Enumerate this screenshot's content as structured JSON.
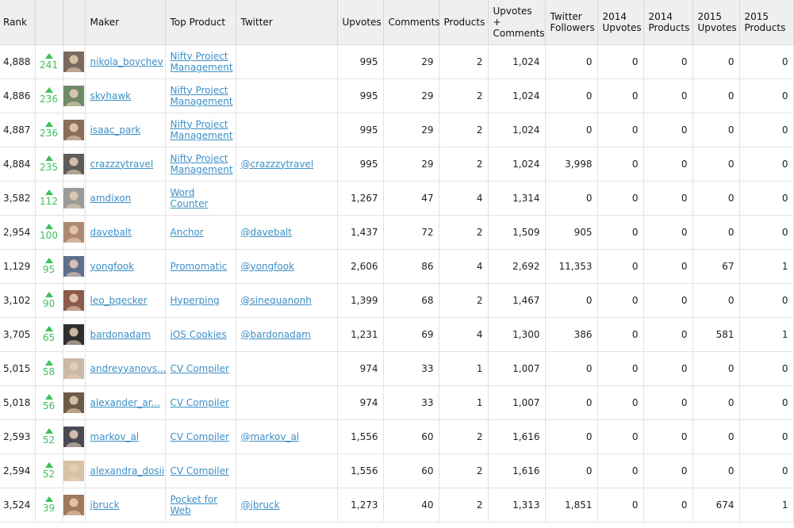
{
  "columns": {
    "rank": "Rank",
    "maker": "Maker",
    "top_product": "Top Product",
    "twitter": "Twitter",
    "upvotes": "Upvotes",
    "comments": "Comments",
    "products": "Products",
    "upvotes_comments": "Upvotes + Comments",
    "twitter_followers": "Twitter Followers",
    "upvotes_2014": "2014 Upvotes",
    "products_2014": "2014 Products",
    "upvotes_2015": "2015 Upvotes",
    "products_2015": "2015 Products"
  },
  "rows": [
    {
      "rank": "4,888",
      "delta": "241",
      "maker": "nikola_boychev",
      "product": "Nifty Project Management",
      "twitter": "",
      "upvotes": "995",
      "comments": "29",
      "products": "2",
      "uc": "1,024",
      "followers": "0",
      "u14": "0",
      "p14": "0",
      "u15": "0",
      "p15": "0"
    },
    {
      "rank": "4,886",
      "delta": "236",
      "maker": "skyhawk",
      "product": "Nifty Project Management",
      "twitter": "",
      "upvotes": "995",
      "comments": "29",
      "products": "2",
      "uc": "1,024",
      "followers": "0",
      "u14": "0",
      "p14": "0",
      "u15": "0",
      "p15": "0"
    },
    {
      "rank": "4,887",
      "delta": "236",
      "maker": "isaac_park",
      "product": "Nifty Project Management",
      "twitter": "",
      "upvotes": "995",
      "comments": "29",
      "products": "2",
      "uc": "1,024",
      "followers": "0",
      "u14": "0",
      "p14": "0",
      "u15": "0",
      "p15": "0"
    },
    {
      "rank": "4,884",
      "delta": "235",
      "maker": "crazzzytravel",
      "product": "Nifty Project Management",
      "twitter": "@crazzzytravel",
      "upvotes": "995",
      "comments": "29",
      "products": "2",
      "uc": "1,024",
      "followers": "3,998",
      "u14": "0",
      "p14": "0",
      "u15": "0",
      "p15": "0"
    },
    {
      "rank": "3,582",
      "delta": "112",
      "maker": "amdixon",
      "product": "Word Counter",
      "twitter": "",
      "upvotes": "1,267",
      "comments": "47",
      "products": "4",
      "uc": "1,314",
      "followers": "0",
      "u14": "0",
      "p14": "0",
      "u15": "0",
      "p15": "0"
    },
    {
      "rank": "2,954",
      "delta": "100",
      "maker": "davebalt",
      "product": "Anchor",
      "twitter": "@davebalt",
      "upvotes": "1,437",
      "comments": "72",
      "products": "2",
      "uc": "1,509",
      "followers": "905",
      "u14": "0",
      "p14": "0",
      "u15": "0",
      "p15": "0"
    },
    {
      "rank": "1,129",
      "delta": "95",
      "maker": "yongfook",
      "product": "Promomatic",
      "twitter": "@yongfook",
      "upvotes": "2,606",
      "comments": "86",
      "products": "4",
      "uc": "2,692",
      "followers": "11,353",
      "u14": "0",
      "p14": "0",
      "u15": "67",
      "p15": "1"
    },
    {
      "rank": "3,102",
      "delta": "90",
      "maker": "leo_bqecker",
      "product": "Hyperping",
      "twitter": "@sinequanonh",
      "upvotes": "1,399",
      "comments": "68",
      "products": "2",
      "uc": "1,467",
      "followers": "0",
      "u14": "0",
      "p14": "0",
      "u15": "0",
      "p15": "0"
    },
    {
      "rank": "3,705",
      "delta": "65",
      "maker": "bardonadam",
      "product": "iOS Cookies",
      "twitter": "@bardonadam",
      "upvotes": "1,231",
      "comments": "69",
      "products": "4",
      "uc": "1,300",
      "followers": "386",
      "u14": "0",
      "p14": "0",
      "u15": "581",
      "p15": "1"
    },
    {
      "rank": "5,015",
      "delta": "58",
      "maker": "andreyyanovs...",
      "product": "CV Compiler",
      "twitter": "",
      "upvotes": "974",
      "comments": "33",
      "products": "1",
      "uc": "1,007",
      "followers": "0",
      "u14": "0",
      "p14": "0",
      "u15": "0",
      "p15": "0"
    },
    {
      "rank": "5,018",
      "delta": "56",
      "maker": "alexander_ar...",
      "product": "CV Compiler",
      "twitter": "",
      "upvotes": "974",
      "comments": "33",
      "products": "1",
      "uc": "1,007",
      "followers": "0",
      "u14": "0",
      "p14": "0",
      "u15": "0",
      "p15": "0"
    },
    {
      "rank": "2,593",
      "delta": "52",
      "maker": "markov_al",
      "product": "CV Compiler",
      "twitter": "@markov_al",
      "upvotes": "1,556",
      "comments": "60",
      "products": "2",
      "uc": "1,616",
      "followers": "0",
      "u14": "0",
      "p14": "0",
      "u15": "0",
      "p15": "0"
    },
    {
      "rank": "2,594",
      "delta": "52",
      "maker": "alexandra_dosii",
      "product": "CV Compiler",
      "twitter": "",
      "upvotes": "1,556",
      "comments": "60",
      "products": "2",
      "uc": "1,616",
      "followers": "0",
      "u14": "0",
      "p14": "0",
      "u15": "0",
      "p15": "0"
    },
    {
      "rank": "3,524",
      "delta": "39",
      "maker": "jbruck",
      "product": "Pocket for Web",
      "twitter": "@jbruck",
      "upvotes": "1,273",
      "comments": "40",
      "products": "2",
      "uc": "1,313",
      "followers": "1,851",
      "u14": "0",
      "p14": "0",
      "u15": "674",
      "p15": "1"
    }
  ],
  "avatar_colors": [
    "#7a6a5e",
    "#6f8a6a",
    "#8a6d5a",
    "#5c5c5c",
    "#9a9a9a",
    "#b08a70",
    "#5d6f8c",
    "#8c5a4a",
    "#2e2e2e",
    "#c9b9a8",
    "#6b5a48",
    "#4a4a55",
    "#d7c2a5",
    "#a0785a"
  ]
}
